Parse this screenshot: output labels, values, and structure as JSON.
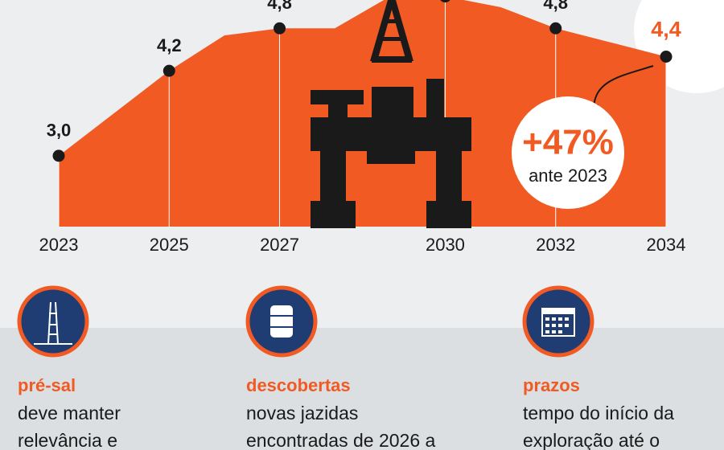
{
  "chart_data": {
    "type": "area",
    "color": "#f15a22",
    "x": [
      2023,
      2024,
      2025,
      2026,
      2027,
      2028,
      2029,
      2030,
      2031,
      2032,
      2033,
      2034
    ],
    "values": [
      3.0,
      3.6,
      4.2,
      4.7,
      4.8,
      4.8,
      5.25,
      5.25,
      5.1,
      4.8,
      4.6,
      4.4
    ],
    "value_labels": [
      "3,0",
      null,
      "4,2",
      null,
      "4,8",
      null,
      null,
      null,
      null,
      "4,8",
      null,
      "4,4"
    ],
    "xlim": [
      2023,
      2034
    ],
    "xticks": [
      2023,
      2025,
      2027,
      2030,
      2032,
      2034
    ],
    "ylim": [
      2,
      5.2
    ],
    "annotation": {
      "value": "+47%",
      "text": "ante 2023"
    }
  },
  "cards": [
    {
      "title": "pré-sal",
      "lines": [
        "deve manter",
        "relevância e"
      ]
    },
    {
      "title": "descobertas",
      "lines": [
        "novas jazidas",
        "encontradas de 2026 a"
      ]
    },
    {
      "title": "prazos",
      "lines": [
        "tempo do início da",
        "exploração até o"
      ]
    }
  ]
}
